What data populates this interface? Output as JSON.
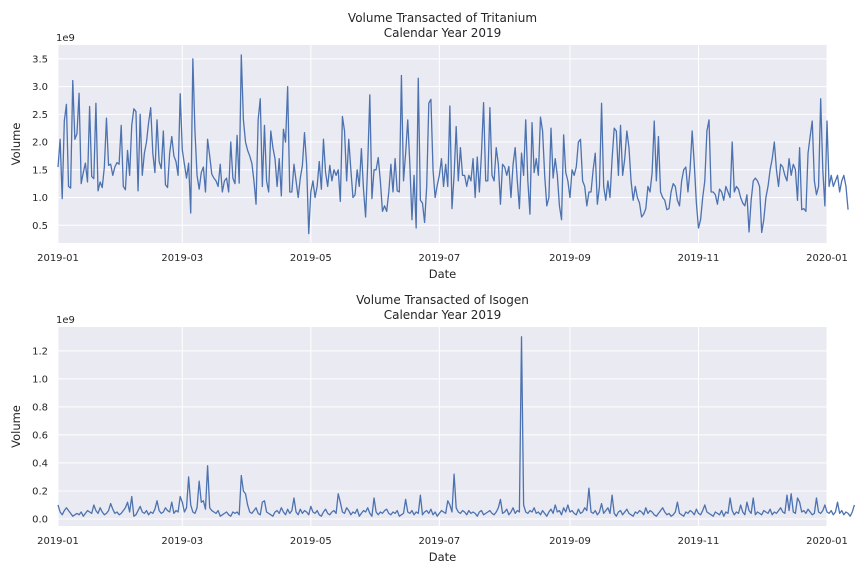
{
  "colors": {
    "line": "#4c72b0",
    "plot_background": "#eaeaf2",
    "grid": "#ffffff",
    "text": "#262626"
  },
  "chart_data": [
    {
      "type": "line",
      "title": "Volume Transacted of Tritanium",
      "subtitle": "Calendar Year 2019",
      "xlabel": "Date",
      "ylabel": "Volume",
      "y_offset_label": "1e9",
      "x_ticks": [
        "2019-01",
        "2019-03",
        "2019-05",
        "2019-07",
        "2019-09",
        "2019-11",
        "2020-01"
      ],
      "x_tick_dates": [
        "2019-01-01",
        "2019-03-01",
        "2019-05-01",
        "2019-07-01",
        "2019-09-01",
        "2019-11-01",
        "2020-01-01"
      ],
      "y_ticks": [
        "0.5",
        "1.0",
        "1.5",
        "2.0",
        "2.5",
        "3.0",
        "3.5"
      ],
      "y_tick_values": [
        0.5,
        1.0,
        1.5,
        2.0,
        2.5,
        3.0,
        3.5
      ],
      "xlim": [
        "2019-01-01",
        "2020-01-01"
      ],
      "ylim": [
        0.18,
        3.75
      ],
      "grid": true,
      "series": [
        {
          "x_start": "2019-01-01",
          "x_step_days": 1,
          "values": [
            1.55,
            2.05,
            0.98,
            2.38,
            2.68,
            1.2,
            1.17,
            3.11,
            2.05,
            2.15,
            2.88,
            1.25,
            1.45,
            1.62,
            1.28,
            2.64,
            1.38,
            1.34,
            2.7,
            1.12,
            1.28,
            1.18,
            1.55,
            2.43,
            1.58,
            1.6,
            1.4,
            1.55,
            1.63,
            1.6,
            2.3,
            1.2,
            1.14,
            1.85,
            1.4,
            2.3,
            2.6,
            2.55,
            1.12,
            2.5,
            1.4,
            1.8,
            2.0,
            2.35,
            2.62,
            1.8,
            1.45,
            2.4,
            1.65,
            1.52,
            2.2,
            1.23,
            1.18,
            1.8,
            2.1,
            1.75,
            1.65,
            1.4,
            2.87,
            1.86,
            1.6,
            1.35,
            1.62,
            0.72,
            3.5,
            2.2,
            1.4,
            1.15,
            1.45,
            1.55,
            1.1,
            2.05,
            1.75,
            1.42,
            1.35,
            1.3,
            1.2,
            1.6,
            1.1,
            1.3,
            1.35,
            1.1,
            2.0,
            1.35,
            1.25,
            2.12,
            1.26,
            3.57,
            2.4,
            2.0,
            1.85,
            1.75,
            1.62,
            1.3,
            0.88,
            2.4,
            2.78,
            1.2,
            2.3,
            1.3,
            1.1,
            2.2,
            1.9,
            1.7,
            1.2,
            1.7,
            1.03,
            2.23,
            2.0,
            3.0,
            1.1,
            1.1,
            1.6,
            1.3,
            1.0,
            1.35,
            1.58,
            2.17,
            1.6,
            0.35,
            1.1,
            1.3,
            1.0,
            1.2,
            1.65,
            1.15,
            2.05,
            1.45,
            1.2,
            1.58,
            1.3,
            1.5,
            1.4,
            1.5,
            0.93,
            2.46,
            2.2,
            1.3,
            2.05,
            1.5,
            1.0,
            1.05,
            1.5,
            1.2,
            1.88,
            1.15,
            0.65,
            1.6,
            2.85,
            0.98,
            1.5,
            1.5,
            1.72,
            1.3,
            0.75,
            0.85,
            0.75,
            1.1,
            1.6,
            1.1,
            1.7,
            1.12,
            1.1,
            3.2,
            1.3,
            1.8,
            2.4,
            1.6,
            0.6,
            1.4,
            0.45,
            3.15,
            0.95,
            0.9,
            0.55,
            1.2,
            2.7,
            2.77,
            1.5,
            1.0,
            1.22,
            1.4,
            1.7,
            1.2,
            1.6,
            1.2,
            2.65,
            0.8,
            1.4,
            2.28,
            1.3,
            1.9,
            1.4,
            1.4,
            1.2,
            1.4,
            1.3,
            1.7,
            1.0,
            1.73,
            1.1,
            1.8,
            2.71,
            1.3,
            1.3,
            2.62,
            1.4,
            1.3,
            1.9,
            1.6,
            0.88,
            1.6,
            1.55,
            1.4,
            1.56,
            1.0,
            1.6,
            1.9,
            1.3,
            0.8,
            1.8,
            1.4,
            2.4,
            1.3,
            0.7,
            2.35,
            1.45,
            1.7,
            1.4,
            2.45,
            2.2,
            1.4,
            0.85,
            1.0,
            2.25,
            1.35,
            1.7,
            1.4,
            0.85,
            0.6,
            2.13,
            1.45,
            1.3,
            1.0,
            1.5,
            1.4,
            1.55,
            2.0,
            2.05,
            1.3,
            1.2,
            0.85,
            1.1,
            1.1,
            1.5,
            1.8,
            0.88,
            1.2,
            2.7,
            1.2,
            0.95,
            1.3,
            1.0,
            1.7,
            2.25,
            2.2,
            1.4,
            2.3,
            1.4,
            1.7,
            2.2,
            1.9,
            1.3,
            0.95,
            1.2,
            1.0,
            0.9,
            0.65,
            0.7,
            0.8,
            1.2,
            1.1,
            1.45,
            2.38,
            1.3,
            2.1,
            1.1,
            1.0,
            0.95,
            0.78,
            0.8,
            1.1,
            1.25,
            1.2,
            0.95,
            0.85,
            1.3,
            1.5,
            1.55,
            1.1,
            1.5,
            2.2,
            1.6,
            0.9,
            0.45,
            0.6,
            1.0,
            1.3,
            2.2,
            2.4,
            1.1,
            1.1,
            1.05,
            0.88,
            1.15,
            1.1,
            0.95,
            1.2,
            1.1,
            1.0,
            2.0,
            1.1,
            1.2,
            1.15,
            1.0,
            0.9,
            0.85,
            1.05,
            0.38,
            0.95,
            1.3,
            1.35,
            1.3,
            1.2,
            0.37,
            0.6,
            1.0,
            1.2,
            1.5,
            1.7,
            2.0,
            1.5,
            1.2,
            1.6,
            1.55,
            1.4,
            1.3,
            1.7,
            1.4,
            1.6,
            1.5,
            0.95,
            1.9,
            0.78,
            0.8,
            0.75,
            1.8,
            2.1,
            2.38,
            1.3,
            1.05,
            1.2,
            2.78,
            1.5,
            0.85,
            2.38,
            1.2,
            1.4,
            1.2,
            1.3,
            1.4,
            1.1,
            1.3,
            1.4,
            1.2,
            0.78
          ]
        }
      ]
    },
    {
      "type": "line",
      "title": "Volume Transacted of Isogen",
      "subtitle": "Calendar Year 2019",
      "xlabel": "Date",
      "ylabel": "Volume",
      "y_offset_label": "1e9",
      "x_ticks": [
        "2019-01",
        "2019-03",
        "2019-05",
        "2019-07",
        "2019-09",
        "2019-11",
        "2020-01"
      ],
      "x_tick_dates": [
        "2019-01-01",
        "2019-03-01",
        "2019-05-01",
        "2019-07-01",
        "2019-09-01",
        "2019-11-01",
        "2020-01-01"
      ],
      "y_ticks": [
        "0.0",
        "0.2",
        "0.4",
        "0.6",
        "0.8",
        "1.0",
        "1.2"
      ],
      "y_tick_values": [
        0.0,
        0.2,
        0.4,
        0.6,
        0.8,
        1.0,
        1.2
      ],
      "xlim": [
        "2019-01-01",
        "2020-01-01"
      ],
      "ylim": [
        -0.05,
        1.37
      ],
      "grid": true,
      "series": [
        {
          "x_start": "2019-01-01",
          "x_step_days": 1,
          "values": [
            0.1,
            0.05,
            0.03,
            0.06,
            0.08,
            0.06,
            0.04,
            0.02,
            0.03,
            0.04,
            0.03,
            0.05,
            0.02,
            0.04,
            0.06,
            0.05,
            0.04,
            0.1,
            0.06,
            0.04,
            0.08,
            0.05,
            0.03,
            0.04,
            0.06,
            0.11,
            0.07,
            0.04,
            0.05,
            0.03,
            0.04,
            0.06,
            0.08,
            0.12,
            0.05,
            0.16,
            0.02,
            0.03,
            0.06,
            0.09,
            0.05,
            0.04,
            0.06,
            0.03,
            0.05,
            0.04,
            0.07,
            0.13,
            0.06,
            0.04,
            0.05,
            0.08,
            0.06,
            0.05,
            0.12,
            0.04,
            0.06,
            0.05,
            0.16,
            0.12,
            0.05,
            0.08,
            0.3,
            0.1,
            0.05,
            0.04,
            0.08,
            0.27,
            0.12,
            0.13,
            0.07,
            0.38,
            0.08,
            0.06,
            0.05,
            0.04,
            0.06,
            0.02,
            0.03,
            0.04,
            0.05,
            0.03,
            0.02,
            0.05,
            0.04,
            0.05,
            0.03,
            0.31,
            0.2,
            0.18,
            0.1,
            0.05,
            0.04,
            0.06,
            0.08,
            0.04,
            0.03,
            0.12,
            0.13,
            0.05,
            0.04,
            0.03,
            0.02,
            0.05,
            0.06,
            0.04,
            0.08,
            0.05,
            0.03,
            0.07,
            0.04,
            0.06,
            0.15,
            0.05,
            0.03,
            0.07,
            0.04,
            0.06,
            0.05,
            0.03,
            0.09,
            0.05,
            0.04,
            0.06,
            0.03,
            0.02,
            0.05,
            0.07,
            0.04,
            0.03,
            0.05,
            0.06,
            0.04,
            0.18,
            0.12,
            0.05,
            0.04,
            0.08,
            0.06,
            0.03,
            0.05,
            0.04,
            0.07,
            0.02,
            0.04,
            0.06,
            0.05,
            0.08,
            0.04,
            0.02,
            0.15,
            0.05,
            0.03,
            0.05,
            0.04,
            0.06,
            0.07,
            0.04,
            0.03,
            0.05,
            0.04,
            0.06,
            0.02,
            0.03,
            0.04,
            0.14,
            0.05,
            0.04,
            0.06,
            0.03,
            0.05,
            0.04,
            0.17,
            0.03,
            0.05,
            0.06,
            0.04,
            0.07,
            0.03,
            0.05,
            0.02,
            0.04,
            0.06,
            0.05,
            0.04,
            0.13,
            0.1,
            0.05,
            0.32,
            0.08,
            0.05,
            0.04,
            0.06,
            0.05,
            0.03,
            0.06,
            0.04,
            0.05,
            0.04,
            0.02,
            0.05,
            0.06,
            0.03,
            0.04,
            0.05,
            0.06,
            0.04,
            0.03,
            0.05,
            0.08,
            0.14,
            0.04,
            0.05,
            0.07,
            0.03,
            0.05,
            0.08,
            0.04,
            0.06,
            0.05,
            1.3,
            0.1,
            0.05,
            0.04,
            0.06,
            0.05,
            0.08,
            0.04,
            0.05,
            0.03,
            0.06,
            0.04,
            0.02,
            0.05,
            0.07,
            0.04,
            0.1,
            0.05,
            0.06,
            0.03,
            0.08,
            0.05,
            0.1,
            0.05,
            0.06,
            0.04,
            0.03,
            0.07,
            0.04,
            0.05,
            0.08,
            0.06,
            0.22,
            0.05,
            0.04,
            0.06,
            0.03,
            0.05,
            0.11,
            0.04,
            0.06,
            0.08,
            0.04,
            0.17,
            0.04,
            0.02,
            0.05,
            0.06,
            0.03,
            0.05,
            0.07,
            0.04,
            0.03,
            0.02,
            0.05,
            0.04,
            0.06,
            0.05,
            0.03,
            0.08,
            0.04,
            0.06,
            0.05,
            0.03,
            0.02,
            0.04,
            0.06,
            0.08,
            0.05,
            0.03,
            0.04,
            0.02,
            0.03,
            0.05,
            0.12,
            0.04,
            0.03,
            0.02,
            0.05,
            0.04,
            0.06,
            0.05,
            0.03,
            0.07,
            0.04,
            0.03,
            0.06,
            0.1,
            0.05,
            0.04,
            0.03,
            0.02,
            0.05,
            0.04,
            0.03,
            0.06,
            0.02,
            0.05,
            0.04,
            0.15,
            0.06,
            0.03,
            0.05,
            0.04,
            0.1,
            0.05,
            0.03,
            0.12,
            0.06,
            0.04,
            0.15,
            0.03,
            0.05,
            0.04,
            0.03,
            0.06,
            0.05,
            0.04,
            0.07,
            0.03,
            0.05,
            0.04,
            0.06,
            0.08,
            0.05,
            0.04,
            0.17,
            0.06,
            0.18,
            0.05,
            0.04,
            0.15,
            0.12,
            0.05,
            0.06,
            0.04,
            0.07,
            0.05,
            0.03,
            0.04,
            0.15,
            0.05,
            0.04,
            0.06,
            0.1,
            0.05,
            0.04,
            0.06,
            0.03,
            0.05,
            0.12,
            0.04,
            0.06,
            0.03,
            0.05,
            0.04,
            0.02,
            0.05,
            0.1
          ]
        }
      ]
    }
  ]
}
